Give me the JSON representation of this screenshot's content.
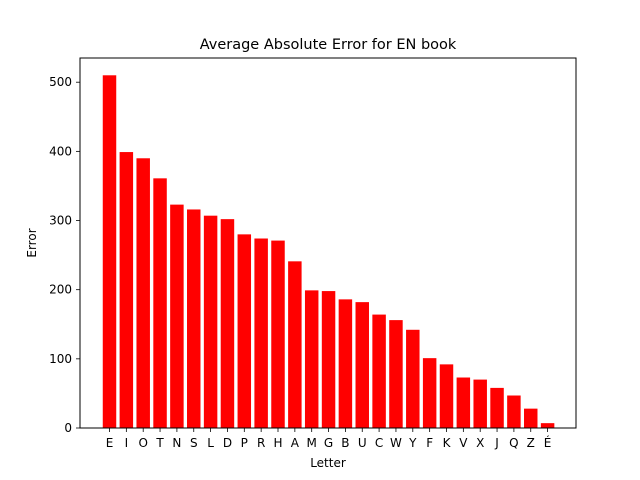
{
  "chart_data": {
    "type": "bar",
    "title": "Average Absolute Error for EN book",
    "xlabel": "Letter",
    "ylabel": "Error",
    "categories": [
      "E",
      "I",
      "O",
      "T",
      "N",
      "S",
      "L",
      "D",
      "P",
      "R",
      "H",
      "A",
      "M",
      "G",
      "B",
      "U",
      "C",
      "W",
      "Y",
      "F",
      "K",
      "V",
      "X",
      "J",
      "Q",
      "Z",
      "É"
    ],
    "values": [
      510,
      399,
      390,
      361,
      323,
      316,
      307,
      302,
      280,
      274,
      271,
      241,
      199,
      198,
      186,
      182,
      164,
      156,
      142,
      101,
      92,
      73,
      70,
      58,
      47,
      28,
      7
    ],
    "ylim": [
      0,
      535
    ],
    "yticks": [
      0,
      100,
      200,
      300,
      400,
      500
    ],
    "bar_color": "#ff0000",
    "grid": false,
    "legend": "none"
  }
}
